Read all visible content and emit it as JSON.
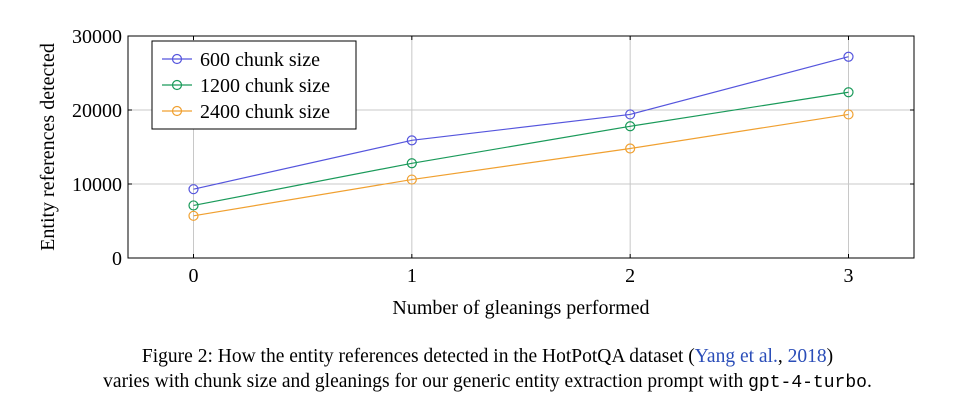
{
  "chart_data": {
    "type": "line",
    "x": [
      0,
      1,
      2,
      3
    ],
    "xlabel": "Number of gleanings performed",
    "ylabel": "Entity references detected",
    "xlim": [
      -0.3,
      3.3
    ],
    "ylim": [
      0,
      30000
    ],
    "xticks": [
      0,
      1,
      2,
      3
    ],
    "yticks": [
      0,
      10000,
      20000,
      30000
    ],
    "grid": true,
    "legend_position": "top-left",
    "series": [
      {
        "name": "600 chunk size",
        "values": [
          9300,
          15900,
          19400,
          27200
        ],
        "color": "#5555dd"
      },
      {
        "name": "1200 chunk size",
        "values": [
          7100,
          12800,
          17800,
          22400
        ],
        "color": "#1a9a5a"
      },
      {
        "name": "2400 chunk size",
        "values": [
          5700,
          10600,
          14800,
          19400
        ],
        "color": "#f0a030"
      }
    ]
  },
  "caption": {
    "line1_text": "Figure 2: How the entity references detected in the HotPotQA dataset (",
    "line1_cite": "Yang et al.",
    "line1_sep": ", ",
    "line1_year": "2018",
    "line1_end": ")",
    "line2_text": "varies with chunk size and gleanings for our generic entity extraction prompt with ",
    "line2_code": "gpt-4-turbo",
    "line2_end": "."
  }
}
